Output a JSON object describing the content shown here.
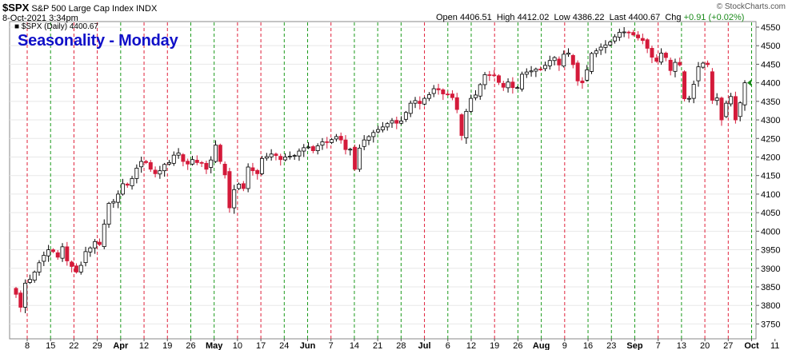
{
  "header": {
    "symbol": "$SPX",
    "name": "S&P 500 Large Cap Index",
    "exchange": "INDX",
    "date": "8-Oct-2021 3:34pm",
    "open_label": "Open",
    "open": "4406.51",
    "high_label": "High",
    "high": "4412.02",
    "low_label": "Low",
    "low": "4386.22",
    "last_label": "Last",
    "last": "4400.67",
    "chg_label": "Chg",
    "chg": "+0.91 (+0.02%)",
    "watermark": "© StockCharts.com"
  },
  "legend": {
    "glyph": "■",
    "text": "$SPX (Daily) 4400.67"
  },
  "annotation": "Seasonality - Monday",
  "colors": {
    "up": "#ffffff",
    "down": "#d41a3a",
    "outline": "#000000",
    "red_line": "#e0203a",
    "green_line": "#1a9a1a",
    "title": "#1010c8",
    "grid": "#e8e8e8"
  },
  "chart_data": {
    "type": "candlestick",
    "ylim": [
      3710,
      4565
    ],
    "y_ticks": [
      3750,
      3800,
      3850,
      3900,
      3950,
      4000,
      4050,
      4100,
      4150,
      4200,
      4250,
      4300,
      4350,
      4400,
      4450,
      4500,
      4550
    ],
    "x_tick_labels": [
      "8",
      "15",
      "22",
      "29",
      "Apr",
      "12",
      "19",
      "26",
      "May",
      "10",
      "17",
      "24",
      "Jun",
      "7",
      "14",
      "21",
      "28",
      "Jul",
      "6",
      "12",
      "19",
      "26",
      "Aug",
      "9",
      "16",
      "23",
      "Sep",
      "7",
      "13",
      "20",
      "27",
      "Oct",
      "11"
    ],
    "month_labels": [
      "Apr",
      "May",
      "Jun",
      "Jul",
      "Aug",
      "Sep",
      "Oct"
    ],
    "vertical_lines": [
      {
        "label": "8",
        "color": "red"
      },
      {
        "label": "15",
        "color": "green"
      },
      {
        "label": "22",
        "color": "red"
      },
      {
        "label": "29",
        "color": "red"
      },
      {
        "label": "Apr",
        "color": "green"
      },
      {
        "label": "12",
        "color": "red"
      },
      {
        "label": "19",
        "color": "red"
      },
      {
        "label": "26",
        "color": "green"
      },
      {
        "label": "May",
        "color": "green"
      },
      {
        "label": "10",
        "color": "red"
      },
      {
        "label": "17",
        "color": "red"
      },
      {
        "label": "24",
        "color": "green"
      },
      {
        "label": "Jun",
        "color": "green"
      },
      {
        "label": "7",
        "color": "red"
      },
      {
        "label": "14",
        "color": "green"
      },
      {
        "label": "21",
        "color": "green"
      },
      {
        "label": "28",
        "color": "green"
      },
      {
        "label": "Jul",
        "color": "red"
      },
      {
        "label": "6",
        "color": "green"
      },
      {
        "label": "12",
        "color": "green"
      },
      {
        "label": "19",
        "color": "red"
      },
      {
        "label": "26",
        "color": "green"
      },
      {
        "label": "Aug",
        "color": "green"
      },
      {
        "label": "9",
        "color": "red"
      },
      {
        "label": "16",
        "color": "green"
      },
      {
        "label": "23",
        "color": "green"
      },
      {
        "label": "Sep",
        "color": "green"
      },
      {
        "label": "7",
        "color": "red"
      },
      {
        "label": "13",
        "color": "green"
      },
      {
        "label": "20",
        "color": "red"
      },
      {
        "label": "27",
        "color": "red"
      },
      {
        "label": "Oct",
        "color": "green"
      },
      {
        "label": "11",
        "color": "red"
      }
    ],
    "close": [
      3830,
      3795,
      3860,
      3870,
      3890,
      3915,
      3935,
      3950,
      3945,
      3930,
      3958,
      3920,
      3905,
      3890,
      3908,
      3945,
      3955,
      3972,
      3964,
      4019,
      4075,
      4080,
      4100,
      4128,
      4124,
      4142,
      4170,
      4188,
      4185,
      4167,
      4155,
      4163,
      4180,
      4185,
      4205,
      4211,
      4188,
      4181,
      4193,
      4185,
      4183,
      4167,
      4192,
      4232,
      4188,
      4152,
      4063,
      4112,
      4127,
      4115,
      4173,
      4163,
      4155,
      4196,
      4201,
      4208,
      4204,
      4193,
      4200,
      4202,
      4204,
      4216,
      4225,
      4227,
      4217,
      4230,
      4241,
      4239,
      4247,
      4255,
      4246,
      4220,
      4221,
      4167,
      4224,
      4246,
      4255,
      4266,
      4274,
      4281,
      4290,
      4298,
      4291,
      4297,
      4320,
      4345,
      4352,
      4344,
      4358,
      4368,
      4384,
      4381,
      4370,
      4369,
      4360,
      4328,
      4258,
      4323,
      4358,
      4367,
      4395,
      4422,
      4421,
      4419,
      4401,
      4388,
      4402,
      4387,
      4387,
      4423,
      4429,
      4432,
      4437,
      4436,
      4447,
      4460,
      4468,
      4448,
      4477,
      4480,
      4449,
      4405,
      4400,
      4435,
      4479,
      4486,
      4496,
      4502,
      4510,
      4524,
      4536,
      4537,
      4535,
      4529,
      4521,
      4514,
      4493,
      4469,
      4458,
      4480,
      4468,
      4433,
      4455,
      4448,
      4357,
      4358,
      4396,
      4443,
      4453,
      4449,
      4353,
      4359,
      4300,
      4345,
      4363,
      4300,
      4346,
      4400
    ]
  }
}
